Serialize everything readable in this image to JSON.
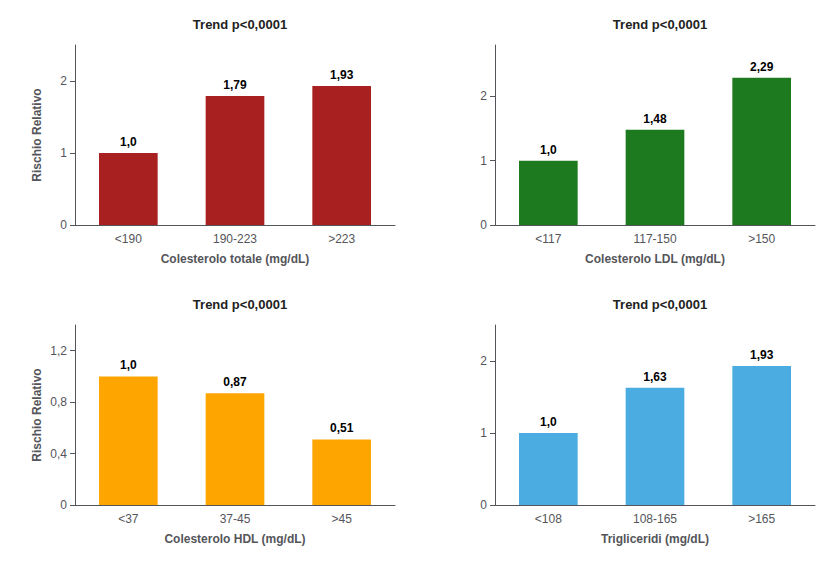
{
  "chart_data": [
    {
      "type": "bar",
      "title": "Trend p<0,0001",
      "categories": [
        "<190",
        "190-223",
        ">223"
      ],
      "values": [
        1.0,
        1.79,
        1.93
      ],
      "value_labels": [
        "1,0",
        "1,79",
        "1,93"
      ],
      "color": "#A82020",
      "xlabel": "Colesterolo totale (mg/dL)",
      "ylabel": "Rischio Relativo",
      "ylim": [
        0,
        2.5
      ],
      "yticks": [
        0,
        1,
        2
      ],
      "grid": false,
      "data_labels": true
    },
    {
      "type": "bar",
      "title": "Trend p<0,0001",
      "categories": [
        "<117",
        "117-150",
        ">150"
      ],
      "values": [
        1.0,
        1.48,
        2.29
      ],
      "value_labels": [
        "1,0",
        "1,48",
        "2,29"
      ],
      "color": "#1E7A1E",
      "xlabel": "Colesterolo LDL (mg/dL)",
      "ylim": [
        0,
        2.8
      ],
      "yticks": [
        0,
        1,
        2
      ],
      "grid": false,
      "data_labels": true
    },
    {
      "type": "bar",
      "title": "Trend p<0,0001",
      "categories": [
        "<37",
        "37-45",
        ">45"
      ],
      "values": [
        1.0,
        0.87,
        0.51
      ],
      "value_labels": [
        "1,0",
        "0,87",
        "0,51"
      ],
      "color": "#FFA500",
      "xlabel": "Colesterolo HDL (mg/dL)",
      "ylabel": "Rischio Relativo",
      "ylim": [
        0,
        1.4
      ],
      "yticks": [
        0,
        {
          "value": 0.4,
          "label": "0,4"
        },
        {
          "value": 0.8,
          "label": "0,8"
        },
        {
          "value": 1.2,
          "label": "1,2"
        }
      ],
      "grid": false,
      "data_labels": true
    },
    {
      "type": "bar",
      "title": "Trend p<0,0001",
      "categories": [
        "<108",
        "108-165",
        ">165"
      ],
      "values": [
        1.0,
        1.63,
        1.93
      ],
      "value_labels": [
        "1,0",
        "1,63",
        "1,93"
      ],
      "color": "#4AACE0",
      "xlabel": "Trigliceridi (mg/dL)",
      "ylim": [
        0,
        2.5
      ],
      "yticks": [
        0,
        1,
        2
      ],
      "grid": false,
      "data_labels": true
    }
  ]
}
